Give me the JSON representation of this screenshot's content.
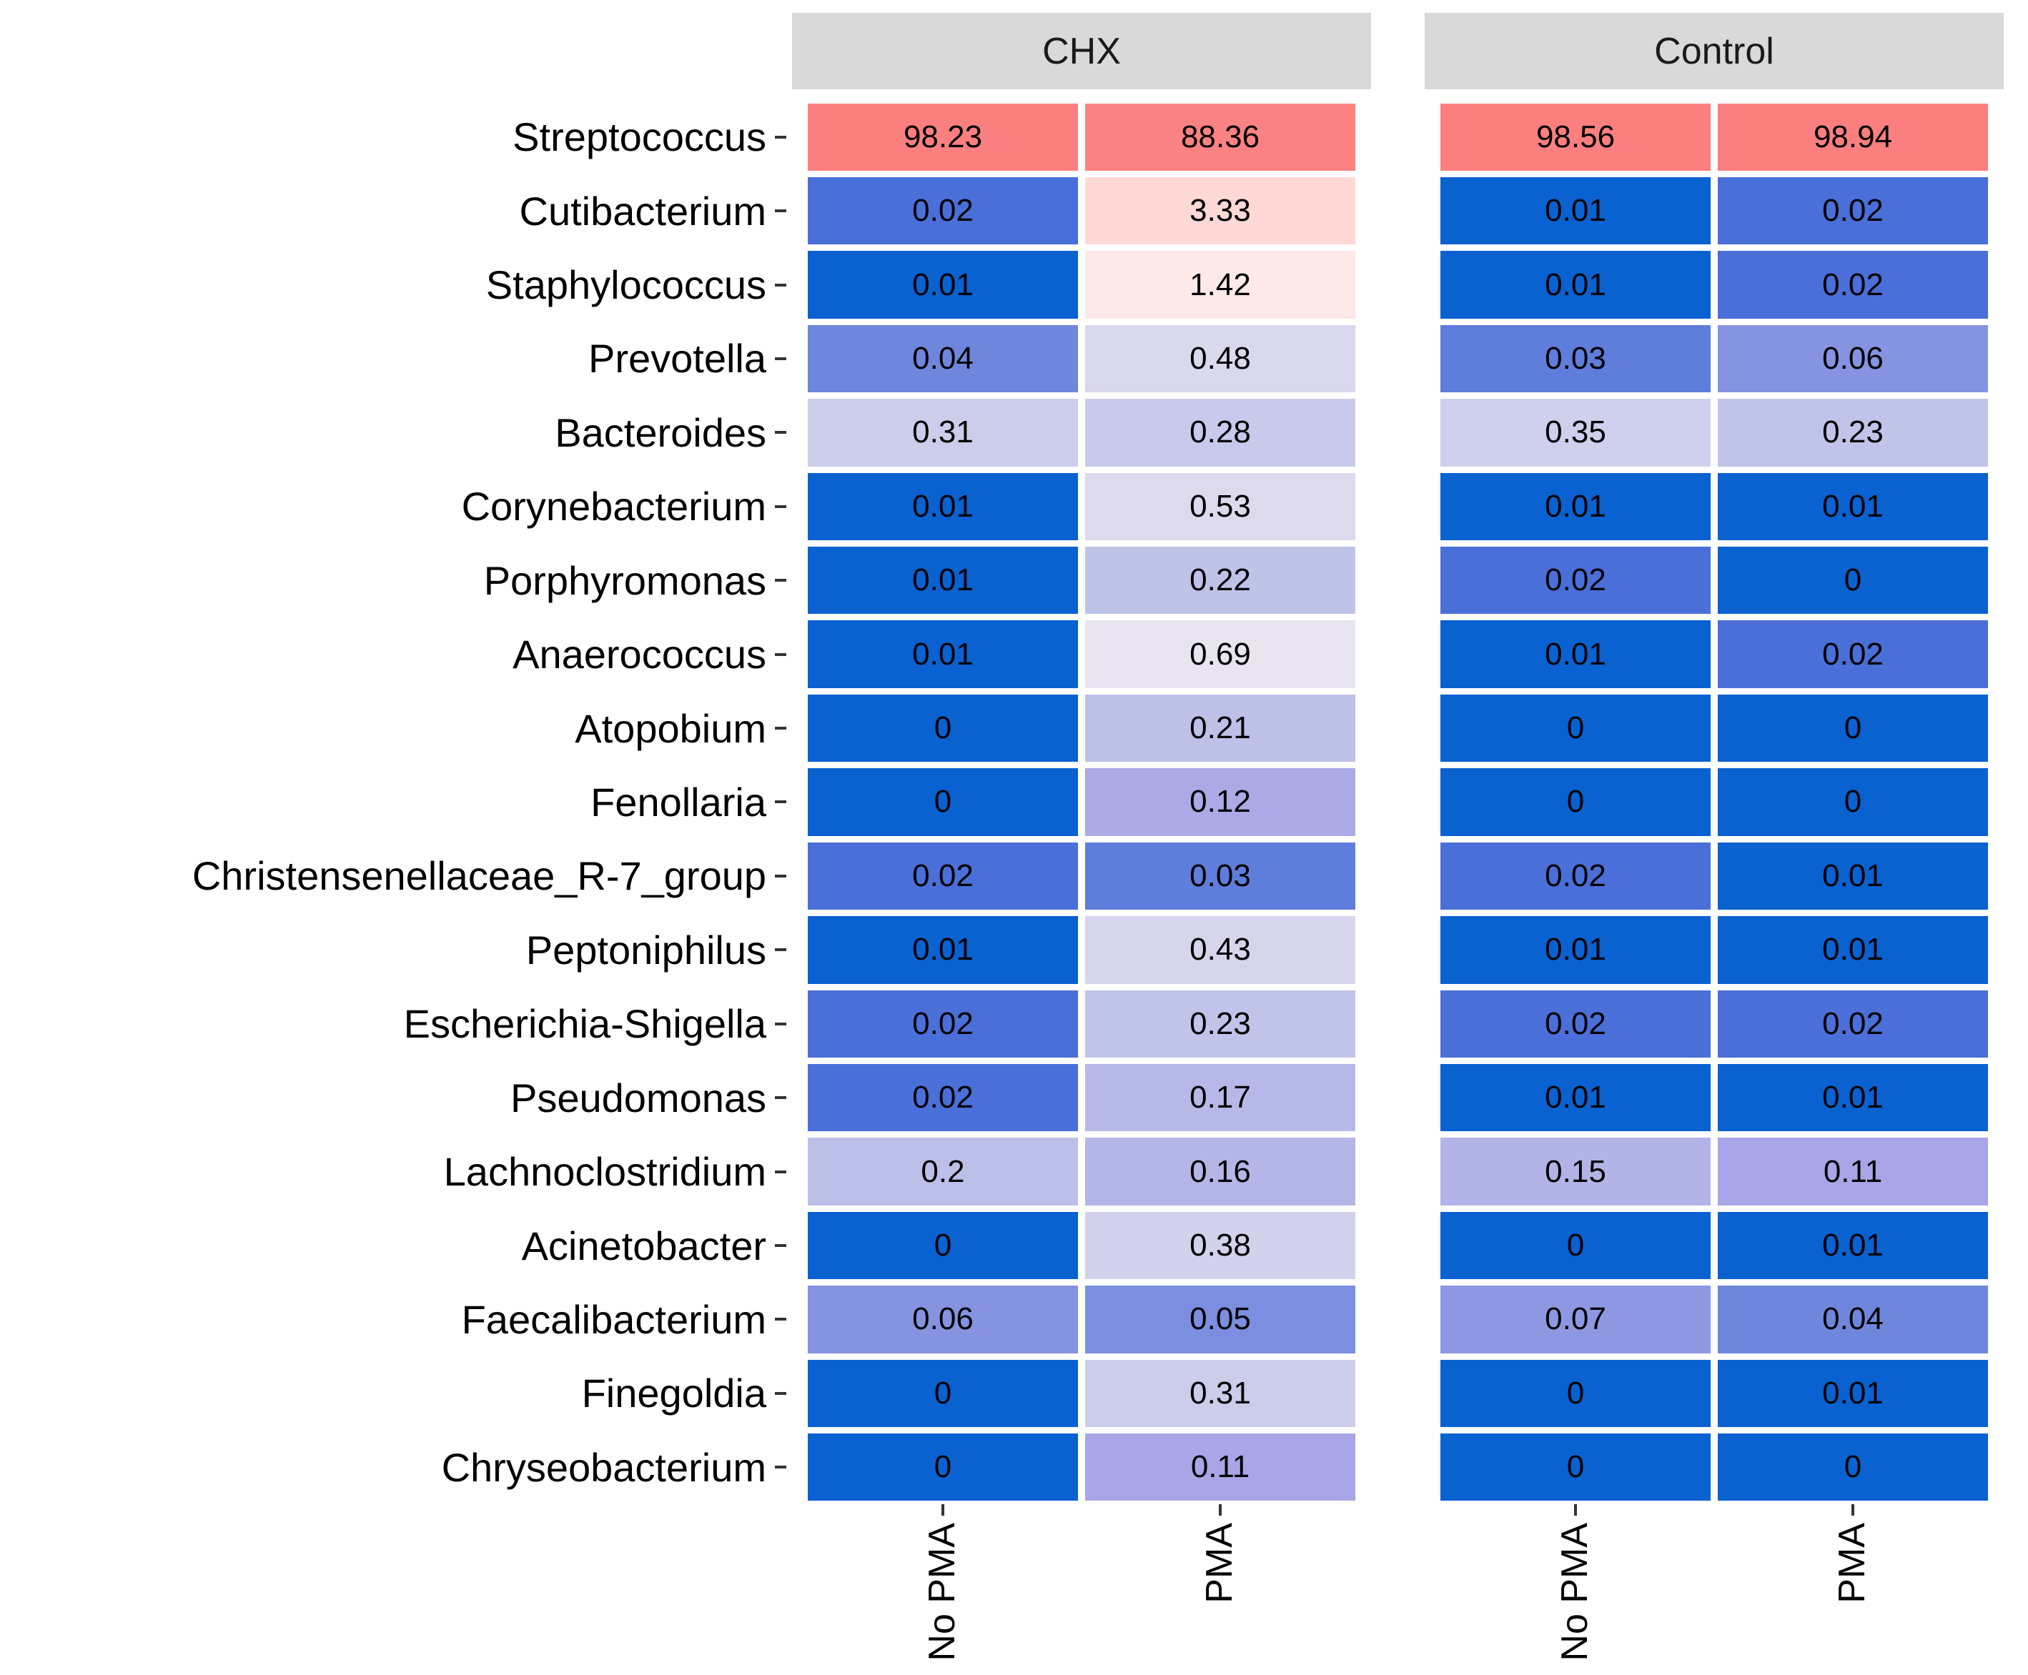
{
  "chart_data": {
    "type": "heatmap",
    "title": "",
    "legend_position": "none",
    "strip_background": "#D9D9D9",
    "facets": [
      {
        "label": "CHX",
        "columns": [
          "No PMA",
          "PMA"
        ]
      },
      {
        "label": "Control",
        "columns": [
          "No PMA",
          "PMA"
        ]
      }
    ],
    "rows": [
      "Streptococcus",
      "Cutibacterium",
      "Staphylococcus",
      "Prevotella",
      "Bacteroides",
      "Corynebacterium",
      "Porphyromonas",
      "Anaerococcus",
      "Atopobium",
      "Fenollaria",
      "Christensenellaceae_R-7_group",
      "Peptoniphilus",
      "Escherichia-Shigella",
      "Pseudomonas",
      "Lachnoclostridium",
      "Acinetobacter",
      "Faecalibacterium",
      "Finegoldia",
      "Chryseobacterium"
    ],
    "series": [
      {
        "facet": "CHX",
        "column": "No PMA",
        "values": [
          98.23,
          0.02,
          0.01,
          0.04,
          0.31,
          0.01,
          0.01,
          0.01,
          0,
          0,
          0.02,
          0.01,
          0.02,
          0.02,
          0.2,
          0,
          0.06,
          0,
          0
        ]
      },
      {
        "facet": "CHX",
        "column": "PMA",
        "values": [
          88.36,
          3.33,
          1.42,
          0.48,
          0.28,
          0.53,
          0.22,
          0.69,
          0.21,
          0.12,
          0.03,
          0.43,
          0.23,
          0.17,
          0.16,
          0.38,
          0.05,
          0.31,
          0.11
        ]
      },
      {
        "facet": "Control",
        "column": "No PMA",
        "values": [
          98.56,
          0.01,
          0.01,
          0.03,
          0.35,
          0.01,
          0.02,
          0.01,
          0,
          0,
          0.02,
          0.01,
          0.02,
          0.01,
          0.15,
          0,
          0.07,
          0,
          0
        ]
      },
      {
        "facet": "Control",
        "column": "PMA",
        "values": [
          98.94,
          0.02,
          0.02,
          0.06,
          0.23,
          0.01,
          0,
          0.02,
          0,
          0,
          0.01,
          0.01,
          0.02,
          0.01,
          0.11,
          0.01,
          0.04,
          0.01,
          0
        ]
      }
    ],
    "color_scale": {
      "type": "diverging-log10",
      "zero_clamp": 0.01,
      "anchors": [
        [
          0.01,
          "#0A61D0"
        ],
        [
          0.02,
          "#4A6FD9"
        ],
        [
          0.04,
          "#6E87DD"
        ],
        [
          0.11,
          "#A8A6E6"
        ],
        [
          0.2,
          "#BBC0E8"
        ],
        [
          0.31,
          "#CBCDEA"
        ],
        [
          0.53,
          "#DDDAEE"
        ],
        [
          0.69,
          "#E8E5F0"
        ],
        [
          1.0,
          "#F6EFF1"
        ],
        [
          1.42,
          "#FDE9E8"
        ],
        [
          3.33,
          "#FFD9D6"
        ],
        [
          100,
          "#FB7F7F"
        ]
      ]
    }
  }
}
